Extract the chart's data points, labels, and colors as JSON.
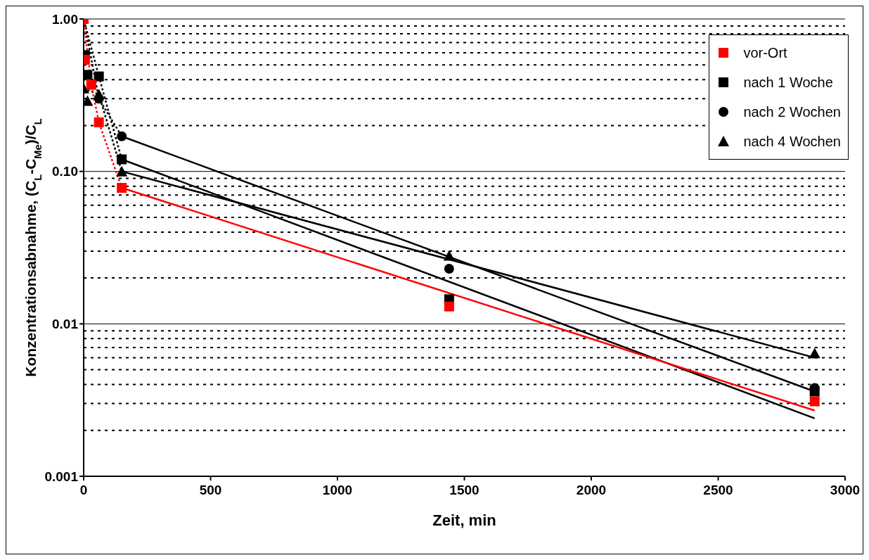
{
  "chart_data": {
    "type": "scatter",
    "xlabel": "Zeit, min",
    "ylabel": "Konzentrationsabnahme, (C$_{L}$-C$_{Me}$)/C$_{L}$",
    "xlim": [
      0,
      3000
    ],
    "xticks": [
      0,
      500,
      1000,
      1500,
      2000,
      2500,
      3000
    ],
    "ylim": [
      0.001,
      1
    ],
    "yticks": [
      {
        "value": 0.001,
        "label": "0.001"
      },
      {
        "value": 0.01,
        "label": "0.01"
      },
      {
        "value": 0.1,
        "label": "0.10"
      },
      {
        "value": 1,
        "label": "1.00"
      }
    ],
    "log": "y",
    "grid": "y",
    "legend": "top right",
    "series": [
      {
        "name": "vor-Ort",
        "color": "#ff0000",
        "marker": "square",
        "x": [
          0,
          5,
          30,
          60,
          150,
          1440,
          2880
        ],
        "values": [
          1.0,
          0.54,
          0.37,
          0.21,
          0.078,
          0.013,
          0.0031
        ]
      },
      {
        "name": "nach 1 Woche",
        "color": "#000000",
        "marker": "square",
        "x": [
          5,
          15,
          60,
          150,
          1440,
          2880
        ],
        "values": [
          0.58,
          0.43,
          0.42,
          0.12,
          0.0145,
          0.0036
        ]
      },
      {
        "name": "nach 2 Wochen",
        "color": "#000000",
        "marker": "circle",
        "x": [
          60,
          150,
          1440,
          2880
        ],
        "values": [
          0.3,
          0.17,
          0.023,
          0.0038
        ]
      },
      {
        "name": "nach 4 Wochen",
        "color": "#000000",
        "marker": "triangle",
        "x": [
          0,
          15,
          60,
          150,
          1440,
          2880
        ],
        "values": [
          0.35,
          0.29,
          0.32,
          0.1,
          0.028,
          0.0064
        ]
      },
      {
        "type": "line",
        "color": "#ff0000",
        "marker": "none",
        "line_style": "dotted",
        "x": [
          0,
          30,
          60,
          150
        ],
        "values": [
          1.0,
          0.37,
          0.21,
          0.078
        ]
      },
      {
        "type": "line",
        "color": "#000000",
        "marker": "none",
        "line_style": "dotted",
        "x": [
          0,
          60,
          150
        ],
        "values": [
          1.0,
          0.42,
          0.12
        ]
      },
      {
        "type": "line",
        "color": "#000000",
        "marker": "none",
        "line_style": "dotted",
        "x": [
          0,
          60,
          150
        ],
        "values": [
          1.0,
          0.3,
          0.17
        ]
      },
      {
        "type": "line",
        "color": "#000000",
        "marker": "none",
        "line_style": "dotted",
        "x": [
          0,
          60,
          150
        ],
        "values": [
          0.35,
          0.32,
          0.1
        ]
      },
      {
        "type": "line",
        "color": "#ff0000",
        "marker": "none",
        "line_style": "solid",
        "x": [
          150,
          2880
        ],
        "values": [
          0.078,
          0.0027
        ]
      },
      {
        "type": "line",
        "color": "#000000",
        "marker": "none",
        "line_style": "solid",
        "x": [
          150,
          2880
        ],
        "values": [
          0.12,
          0.0024
        ]
      },
      {
        "type": "line",
        "color": "#000000",
        "marker": "none",
        "line_style": "solid",
        "x": [
          150,
          2880
        ],
        "values": [
          0.17,
          0.0036
        ]
      },
      {
        "type": "line",
        "color": "#000000",
        "marker": "none",
        "line_style": "solid",
        "x": [
          150,
          2880
        ],
        "values": [
          0.1,
          0.006
        ]
      }
    ]
  }
}
